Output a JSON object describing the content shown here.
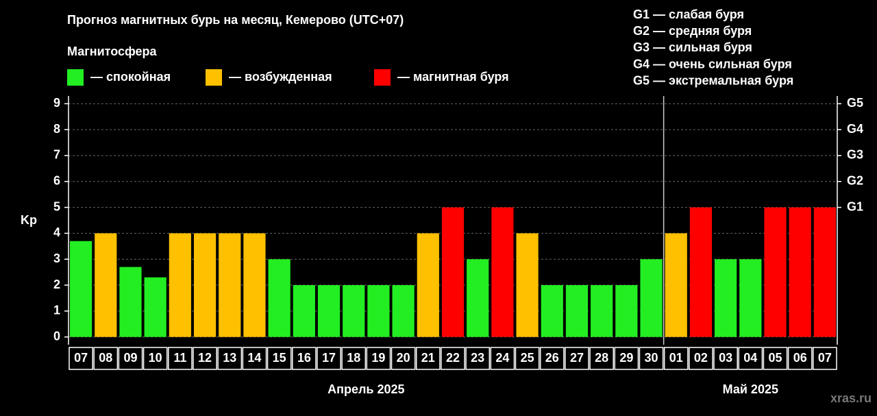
{
  "chart_data": {
    "type": "bar",
    "title": "Прогноз магнитных бурь на месяц, Кемерово (UTC+07)",
    "subtitle": "Магнитосфера",
    "legend": [
      {
        "name": "— спокойная",
        "color": "#22ee22"
      },
      {
        "name": "— возбужденная",
        "color": "#ffc000"
      },
      {
        "name": "— магнитная буря",
        "color": "#ff0000"
      }
    ],
    "storm_scale": [
      "G1 — слабая буря",
      "G2 — средняя буря",
      "G3 — сильная буря",
      "G4 — очень сильная буря",
      "G5 — экстремальная буря"
    ],
    "ylabel": "Kp",
    "ylim": [
      -0.3,
      9.3
    ],
    "yticks": [
      0,
      1,
      2,
      3,
      4,
      5,
      6,
      7,
      8,
      9
    ],
    "y2lim": [
      -0.3,
      9.3
    ],
    "y2ticks": [
      {
        "value": 5,
        "label": "G1"
      },
      {
        "value": 6,
        "label": "G2"
      },
      {
        "value": 7,
        "label": "G3"
      },
      {
        "value": 8,
        "label": "G4"
      },
      {
        "value": 9,
        "label": "G5"
      }
    ],
    "grid": true,
    "groups": [
      {
        "label": "Апрель 2025",
        "categories": [
          "07",
          "08",
          "09",
          "10",
          "11",
          "12",
          "13",
          "14",
          "15",
          "16",
          "17",
          "18",
          "19",
          "20",
          "21",
          "22",
          "23",
          "24",
          "25",
          "26",
          "27",
          "28",
          "29",
          "30"
        ],
        "values": [
          3.7,
          4,
          2.7,
          2.3,
          4,
          4,
          4,
          4,
          3,
          2,
          2,
          2,
          2,
          2,
          4,
          5,
          3,
          5,
          4,
          2,
          2,
          2,
          2,
          3
        ],
        "colors": [
          "#22ee22",
          "#ffc000",
          "#22ee22",
          "#22ee22",
          "#ffc000",
          "#ffc000",
          "#ffc000",
          "#ffc000",
          "#22ee22",
          "#22ee22",
          "#22ee22",
          "#22ee22",
          "#22ee22",
          "#22ee22",
          "#ffc000",
          "#ff0000",
          "#22ee22",
          "#ff0000",
          "#ffc000",
          "#22ee22",
          "#22ee22",
          "#22ee22",
          "#22ee22",
          "#22ee22"
        ]
      },
      {
        "label": "Май 2025",
        "categories": [
          "01",
          "02",
          "03",
          "04",
          "05",
          "06",
          "07"
        ],
        "values": [
          4,
          5,
          3,
          3,
          5,
          5,
          5
        ],
        "colors": [
          "#ffc000",
          "#ff0000",
          "#22ee22",
          "#22ee22",
          "#ff0000",
          "#ff0000",
          "#ff0000"
        ]
      }
    ],
    "watermark": "xras.ru"
  }
}
